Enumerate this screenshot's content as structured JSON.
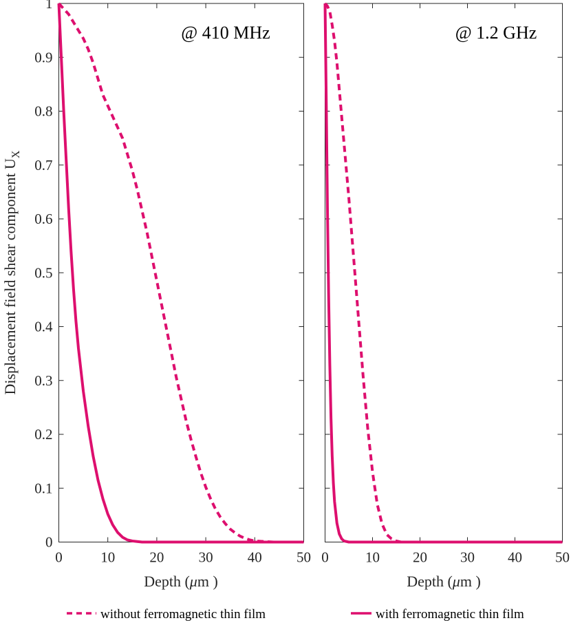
{
  "colors": {
    "series": "#DD0F6E",
    "axis": "#262626"
  },
  "legend": {
    "without": "without ferromagnetic thin film",
    "with": "with ferromagnetic thin film"
  },
  "chart_data": [
    {
      "type": "line",
      "annotation": "@ 410 MHz",
      "xlabel_main": "Depth (",
      "xlabel_mu": "μ",
      "xlabel_unit": "m )",
      "ylabel_main": "Displacement field shear component U",
      "ylabel_sub": "X",
      "xlim": [
        0,
        50
      ],
      "ylim": [
        0,
        1
      ],
      "x_ticks": [
        0,
        10,
        20,
        30,
        40,
        50
      ],
      "y_ticks": [
        0,
        0.1,
        0.2,
        0.3,
        0.4,
        0.5,
        0.6,
        0.7,
        0.8,
        0.9,
        1
      ],
      "x_tick_labels": [
        "0",
        "10",
        "20",
        "30",
        "40",
        "50"
      ],
      "y_tick_labels": [
        "0",
        "0.1",
        "0.2",
        "0.3",
        "0.4",
        "0.5",
        "0.6",
        "0.7",
        "0.8",
        "0.9",
        "1"
      ],
      "series": [
        {
          "name": "without ferromagnetic thin film",
          "style": "dashed",
          "x": [
            0,
            1,
            2,
            3,
            4,
            5,
            6,
            7,
            8,
            9,
            10,
            11,
            12,
            13,
            14,
            15,
            16,
            17,
            18,
            19,
            20,
            21,
            22,
            23,
            24,
            25,
            26,
            27,
            28,
            29,
            30,
            31,
            32,
            33,
            34,
            35,
            36,
            37,
            38,
            39,
            40,
            42,
            44,
            46,
            48,
            50
          ],
          "y": [
            1.0,
            0.99,
            0.98,
            0.965,
            0.95,
            0.935,
            0.915,
            0.89,
            0.86,
            0.83,
            0.81,
            0.79,
            0.77,
            0.75,
            0.72,
            0.69,
            0.655,
            0.615,
            0.575,
            0.53,
            0.485,
            0.44,
            0.395,
            0.35,
            0.305,
            0.265,
            0.225,
            0.19,
            0.158,
            0.128,
            0.102,
            0.08,
            0.061,
            0.046,
            0.034,
            0.024,
            0.017,
            0.011,
            0.007,
            0.004,
            0.002,
            0.001,
            0.0,
            0.0,
            0.0,
            0.0
          ]
        },
        {
          "name": "with ferromagnetic thin film",
          "style": "solid",
          "x": [
            0,
            0.5,
            1,
            1.5,
            2,
            2.5,
            3,
            3.5,
            4,
            5,
            6,
            7,
            8,
            9,
            10,
            11,
            12,
            13,
            14,
            15,
            16,
            17,
            18,
            20,
            25,
            30,
            40,
            50
          ],
          "y": [
            1.0,
            0.9,
            0.8,
            0.71,
            0.62,
            0.54,
            0.47,
            0.41,
            0.36,
            0.28,
            0.215,
            0.16,
            0.115,
            0.08,
            0.052,
            0.032,
            0.018,
            0.009,
            0.004,
            0.002,
            0.001,
            0.0,
            0.0,
            0.0,
            0.0,
            0.0,
            0.0,
            0.0
          ]
        }
      ]
    },
    {
      "type": "line",
      "annotation": "@ 1.2 GHz",
      "xlabel_main": "Depth (",
      "xlabel_mu": "μ",
      "xlabel_unit": "m )",
      "xlim": [
        0,
        50
      ],
      "ylim": [
        0,
        1
      ],
      "x_ticks": [
        0,
        10,
        20,
        30,
        40,
        50
      ],
      "y_ticks": [
        0,
        0.1,
        0.2,
        0.3,
        0.4,
        0.5,
        0.6,
        0.7,
        0.8,
        0.9,
        1
      ],
      "x_tick_labels": [
        "0",
        "10",
        "20",
        "30",
        "40",
        "50"
      ],
      "series": [
        {
          "name": "without ferromagnetic thin film",
          "style": "dashed",
          "x": [
            0,
            0.5,
            1,
            1.5,
            2,
            2.5,
            3,
            4,
            5,
            6,
            7,
            8,
            9,
            10,
            11,
            12,
            13,
            14,
            15,
            16,
            17,
            20,
            30,
            40,
            50
          ],
          "y": [
            1.0,
            0.995,
            0.985,
            0.96,
            0.93,
            0.89,
            0.84,
            0.74,
            0.64,
            0.53,
            0.42,
            0.31,
            0.21,
            0.13,
            0.07,
            0.034,
            0.014,
            0.006,
            0.002,
            0.0,
            0.0,
            0.0,
            0.0,
            0.0,
            0.0
          ]
        },
        {
          "name": "with ferromagnetic thin film",
          "style": "solid",
          "x": [
            0,
            0.25,
            0.5,
            0.75,
            1,
            1.25,
            1.5,
            1.75,
            2,
            2.5,
            3,
            3.5,
            4,
            5,
            10,
            20,
            30,
            40,
            50
          ],
          "y": [
            1.0,
            0.82,
            0.62,
            0.46,
            0.33,
            0.23,
            0.16,
            0.11,
            0.075,
            0.035,
            0.015,
            0.006,
            0.002,
            0.0,
            0.0,
            0.0,
            0.0,
            0.0,
            0.0
          ]
        }
      ]
    }
  ]
}
